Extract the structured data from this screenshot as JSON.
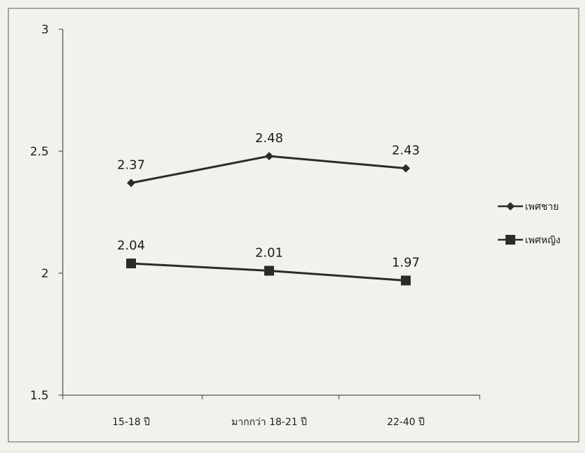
{
  "chart_data": {
    "type": "line",
    "categories": [
      "15-18 ปี",
      "มากกว่า 18-21 ปี",
      "22-40 ปี"
    ],
    "series": [
      {
        "name": "เพศชาย",
        "values": [
          2.37,
          2.48,
          2.43
        ],
        "marker": "diamond",
        "color": "#2b2b2b"
      },
      {
        "name": "เพศหญิง",
        "values": [
          2.04,
          2.01,
          1.97
        ],
        "marker": "square",
        "color": "#2b2b2b"
      }
    ],
    "data_labels": [
      [
        "2.37",
        "2.48",
        "2.43"
      ],
      [
        "2.04",
        "2.01",
        "1.97"
      ]
    ],
    "yticks": [
      "3",
      "2.5",
      "2",
      "1.5"
    ],
    "ylim": [
      1.5,
      3
    ],
    "legend_position": "right",
    "grid": false
  }
}
